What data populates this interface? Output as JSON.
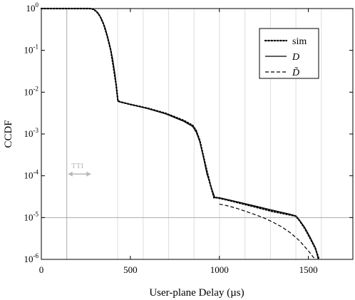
{
  "chart_data": {
    "type": "line",
    "xlabel": "User-plane Delay (µs)",
    "ylabel": "CCDF",
    "xlim": [
      0,
      1750
    ],
    "ylim": [
      1e-06,
      1
    ],
    "yscale": "log",
    "x_ticks": [
      {
        "value": 0,
        "label": "0"
      },
      {
        "value": 500,
        "label": "500"
      },
      {
        "value": 1000,
        "label": "1000"
      },
      {
        "value": 1500,
        "label": "1500"
      }
    ],
    "y_ticks": [
      {
        "value": 1,
        "base": "10",
        "exp": "0"
      },
      {
        "value": 0.1,
        "base": "10",
        "exp": "-1"
      },
      {
        "value": 0.01,
        "base": "10",
        "exp": "-2"
      },
      {
        "value": 0.001,
        "base": "10",
        "exp": "-3"
      },
      {
        "value": 0.0001,
        "base": "10",
        "exp": "-4"
      },
      {
        "value": 1e-05,
        "base": "10",
        "exp": "-5"
      },
      {
        "value": 1e-06,
        "base": "10",
        "exp": "-6"
      }
    ],
    "grid": {
      "vertical_lines_x": [
        143,
        429,
        572,
        715,
        858,
        1001,
        1144,
        1287,
        1430,
        1573
      ],
      "horizontal_line_y": 1e-05,
      "color": "#dddddd",
      "highlight_color": "#aaaaaa"
    },
    "annotation": {
      "text": "TTI",
      "x_start": 143,
      "x_end": 286,
      "y": 0.00011,
      "color": "#b8b8b8"
    },
    "legend": {
      "position": "top-right",
      "entries": [
        {
          "label": "sim",
          "style": "dotted",
          "italic": false
        },
        {
          "label": "D",
          "style": "solid",
          "italic": true
        },
        {
          "label": "D̃",
          "style": "dashed",
          "italic": true
        }
      ]
    },
    "series": [
      {
        "name": "sim",
        "style": "dotted",
        "points": [
          [
            0,
            1
          ],
          [
            270,
            1
          ],
          [
            290,
            0.97
          ],
          [
            310,
            0.85
          ],
          [
            330,
            0.65
          ],
          [
            350,
            0.42
          ],
          [
            370,
            0.22
          ],
          [
            390,
            0.1
          ],
          [
            405,
            0.04
          ],
          [
            420,
            0.015
          ],
          [
            430,
            0.0063
          ],
          [
            440,
            0.0059
          ],
          [
            500,
            0.0051
          ],
          [
            600,
            0.0041
          ],
          [
            700,
            0.0031
          ],
          [
            800,
            0.0021
          ],
          [
            850,
            0.0016
          ],
          [
            870,
            0.0012
          ],
          [
            890,
            0.0007
          ],
          [
            910,
            0.0003
          ],
          [
            930,
            0.00013
          ],
          [
            950,
            6e-05
          ],
          [
            970,
            3e-05
          ],
          [
            985,
            3e-05
          ],
          [
            1000,
            2.9e-05
          ],
          [
            1050,
            2.6e-05
          ],
          [
            1100,
            2.3e-05
          ],
          [
            1200,
            1.8e-05
          ],
          [
            1300,
            1.4e-05
          ],
          [
            1400,
            1.15e-05
          ],
          [
            1430,
            1.08e-05
          ],
          [
            1450,
            8.5e-06
          ],
          [
            1480,
            5.5e-06
          ],
          [
            1510,
            3.2e-06
          ],
          [
            1540,
            1.8e-06
          ],
          [
            1560,
            1e-06
          ]
        ]
      },
      {
        "name": "D",
        "style": "solid",
        "points": [
          [
            0,
            1
          ],
          [
            280,
            1
          ],
          [
            300,
            0.93
          ],
          [
            320,
            0.78
          ],
          [
            340,
            0.55
          ],
          [
            360,
            0.33
          ],
          [
            380,
            0.16
          ],
          [
            400,
            0.065
          ],
          [
            415,
            0.025
          ],
          [
            430,
            0.006
          ],
          [
            500,
            0.0051
          ],
          [
            600,
            0.004
          ],
          [
            700,
            0.003
          ],
          [
            800,
            0.002
          ],
          [
            850,
            0.0015
          ],
          [
            870,
            0.0011
          ],
          [
            890,
            0.00065
          ],
          [
            910,
            0.00028
          ],
          [
            930,
            0.00011
          ],
          [
            950,
            6e-05
          ],
          [
            975,
            3e-05
          ],
          [
            1000,
            3e-05
          ],
          [
            1100,
            2.4e-05
          ],
          [
            1200,
            1.9e-05
          ],
          [
            1300,
            1.5e-05
          ],
          [
            1400,
            1.2e-05
          ],
          [
            1430,
            1.1e-05
          ],
          [
            1450,
            8.8e-06
          ],
          [
            1480,
            5.8e-06
          ],
          [
            1510,
            3.4e-06
          ],
          [
            1540,
            1.9e-06
          ],
          [
            1555,
            1e-06
          ]
        ]
      },
      {
        "name": "D̃",
        "style": "dashed",
        "points": [
          [
            1000,
            2.1e-05
          ],
          [
            1050,
            1.9e-05
          ],
          [
            1100,
            1.65e-05
          ],
          [
            1150,
            1.4e-05
          ],
          [
            1200,
            1.18e-05
          ],
          [
            1250,
            9.8e-06
          ],
          [
            1300,
            7.8e-06
          ],
          [
            1350,
            6e-06
          ],
          [
            1400,
            4.3e-06
          ],
          [
            1450,
            2.8e-06
          ],
          [
            1500,
            1.6e-06
          ],
          [
            1530,
            1.1e-06
          ],
          [
            1545,
            1e-06
          ]
        ]
      }
    ]
  }
}
